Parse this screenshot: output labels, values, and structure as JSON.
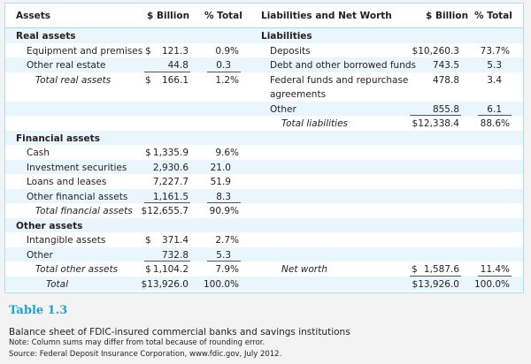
{
  "headers": {
    "assets": "Assets",
    "billion_l": "$ Billion",
    "pct_l": "% Total",
    "liab": "Liabilities and Net Worth",
    "billion_r": "$ Billion",
    "pct_r": "% Total"
  },
  "rows": [
    {
      "left": {
        "label": "Real assets",
        "style": "section"
      },
      "right": {
        "label": "Liabilities",
        "style": "section"
      }
    },
    {
      "left": {
        "label": "Equipment and premises",
        "billion": "$ 121.3",
        "pct": "0.9%"
      },
      "right": {
        "label": "Deposits",
        "billion": "$10,260.3",
        "pct": "73.7%"
      }
    },
    {
      "left": {
        "label": "Other real estate",
        "billion": "44.8",
        "pct": "0.3",
        "underline": true
      },
      "right": {
        "label": "Debt and other borrowed funds",
        "billion": "743.5",
        "pct": "5.3"
      }
    },
    {
      "double": true,
      "left": {
        "label": "Total real assets",
        "billion": "$ 166.1",
        "pct": "1.2%",
        "style": "total"
      },
      "right": {
        "label": "Federal funds and repurchase",
        "label2": "agreements",
        "billion": "478.8",
        "pct": "3.4"
      }
    },
    {
      "right": {
        "label": "Other",
        "billion": "855.8",
        "pct": "6.1",
        "underline": true
      }
    },
    {
      "right": {
        "label": "Total liabilities",
        "billion": "$12,338.4",
        "pct": "88.6%",
        "style": "total"
      }
    },
    {
      "left": {
        "label": "Financial assets",
        "style": "section"
      }
    },
    {
      "left": {
        "label": "Cash",
        "billion": "$ 1,335.9",
        "pct": "9.6%"
      }
    },
    {
      "left": {
        "label": "Investment securities",
        "billion": "2,930.6",
        "pct": "21.0"
      }
    },
    {
      "left": {
        "label": "Loans and leases",
        "billion": "7,227.7",
        "pct": "51.9"
      }
    },
    {
      "left": {
        "label": "Other financial assets",
        "billion": "1,161.5",
        "pct": "8.3",
        "underline": true
      }
    },
    {
      "left": {
        "label": "Total financial assets",
        "billion": "$12,655.7",
        "pct": "90.9%",
        "style": "total"
      }
    },
    {
      "left": {
        "label": "Other assets",
        "style": "section"
      }
    },
    {
      "left": {
        "label": "Intangible assets",
        "billion": "$ 371.4",
        "pct": "2.7%"
      }
    },
    {
      "left": {
        "label": "Other",
        "billion": "732.8",
        "pct": "5.3",
        "underline": true
      }
    },
    {
      "left": {
        "label": "Total other assets",
        "billion": "$ 1,104.2",
        "pct": "7.9%",
        "style": "total"
      },
      "right": {
        "label": "Net worth",
        "billion": "$ 1,587.6",
        "pct": "11.4%",
        "style": "total",
        "underline": true
      }
    },
    {
      "left": {
        "label": "Total",
        "billion": "$13,926.0",
        "pct": "100.0%",
        "style": "grand"
      },
      "right": {
        "label": "",
        "billion": "$13,926.0",
        "pct": "100.0%"
      }
    }
  ],
  "caption": {
    "number": "Table 1.3",
    "title": "Balance sheet of FDIC-insured commercial banks and savings institutions",
    "note": "Note: Column sums may differ from total because of rounding error.",
    "source": "Source: Federal Deposit Insurance Corporation, www.fdic.gov, July 2012."
  },
  "colors": {
    "accent": "#1aa3dc",
    "stripe": "#eaf6fd",
    "border": "#a9dcf2"
  }
}
